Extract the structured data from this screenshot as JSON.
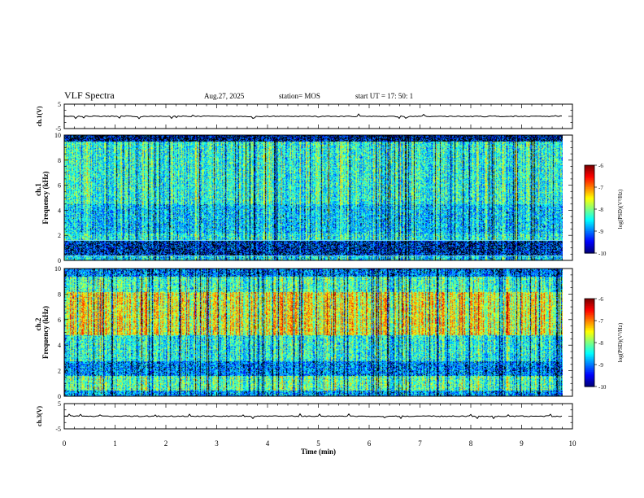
{
  "header": {
    "title": "VLF Spectra",
    "date": "Aug.27, 2025",
    "station": "station= MOS",
    "start": "start  UT  =   17: 50: 1"
  },
  "chart_data": {
    "type": "heatmap",
    "title": "VLF Spectra",
    "xlabel": "Time  (min)",
    "xlim": [
      0,
      10
    ],
    "x_ticks": [
      "0",
      "1",
      "2",
      "3",
      "4",
      "5",
      "6",
      "7",
      "8",
      "9",
      "10"
    ],
    "data_end_min": 9.8,
    "panels": [
      {
        "name": "ch1-waveform",
        "type": "line",
        "ylabel": "ch.1(V)",
        "ylim": [
          -5,
          5
        ],
        "y_ticks": [
          "5",
          "-5"
        ],
        "baseline": 0
      },
      {
        "name": "ch1-spectrogram",
        "type": "heatmap",
        "ylabel_top": "ch.1",
        "ylabel": "Frequency  (kHz)",
        "ylim": [
          0,
          10
        ],
        "y_ticks": [
          "0",
          "2",
          "4",
          "6",
          "8",
          "10"
        ],
        "colorbar": {
          "label": "log(PSD)(V²/Hz)",
          "range": [
            -10,
            -6
          ],
          "ticks": [
            "-6",
            "-7",
            "-8",
            "-9",
            "-10"
          ]
        }
      },
      {
        "name": "ch2-spectrogram",
        "type": "heatmap",
        "ylabel_top": "ch.2",
        "ylabel": "Frequency  (kHz)",
        "ylim": [
          0,
          10
        ],
        "y_ticks": [
          "0",
          "2",
          "4",
          "6",
          "8",
          "10"
        ],
        "colorbar": {
          "label": "log(PSD)(V²/Hz)",
          "range": [
            -10,
            -6
          ],
          "ticks": [
            "-6",
            "-7",
            "-8",
            "-9",
            "-10"
          ]
        }
      },
      {
        "name": "ch3-waveform",
        "type": "line",
        "ylabel": "ch.3(V)",
        "ylim": [
          -5,
          5
        ],
        "y_ticks": [
          "5",
          "-5"
        ],
        "baseline": 0
      }
    ]
  }
}
